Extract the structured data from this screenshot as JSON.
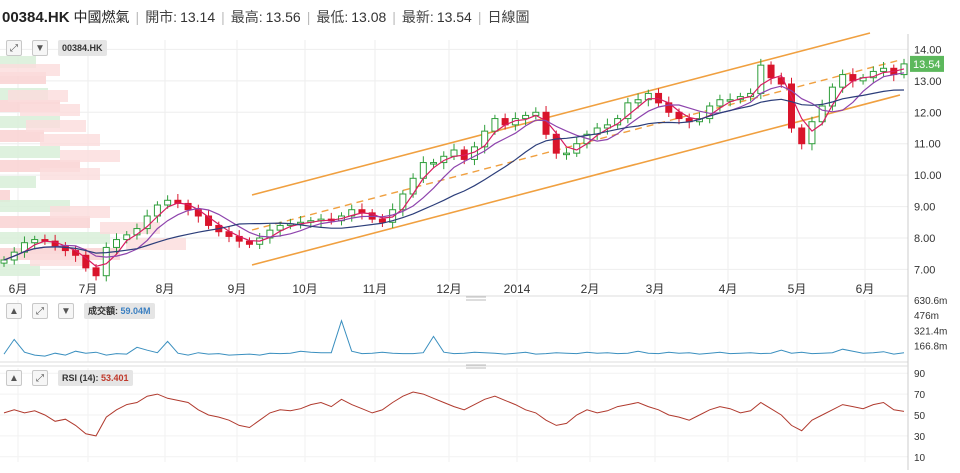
{
  "header": {
    "ticker": "00384.HK",
    "name": "中國燃氣",
    "open_label": "開市:",
    "open_value": "13.14",
    "high_label": "最高:",
    "high_value": "13.56",
    "low_label": "最低:",
    "low_value": "13.08",
    "last_label": "最新:",
    "last_value": "13.54",
    "period": "日線圖"
  },
  "colors": {
    "up": "#2e9e3a",
    "down": "#d9142b",
    "ma_short": "#d81b60",
    "ma_mid": "#8e44ad",
    "ma_long": "#2c3e7a",
    "channel": "#f0a040",
    "volume": "#3a8fbf",
    "rsi": "#b03a2e",
    "price_tag": "#5cb85c"
  },
  "icons": {
    "expand": "expand-icon",
    "collapse": "arrow-down-icon",
    "up": "arrow-up-icon"
  },
  "chart_data": [
    {
      "type": "candlestick",
      "label": "00384.HK",
      "x_tick_labels": [
        "6月",
        "7月",
        "8月",
        "9月",
        "10月",
        "11月",
        "12月",
        "2014",
        "2月",
        "3月",
        "4月",
        "5月",
        "6月"
      ],
      "y_tick_labels": [
        "14.00",
        "13.00",
        "12.00",
        "11.00",
        "10.00",
        "9.00",
        "8.00",
        "7.00"
      ],
      "ylim": [
        6.6,
        14.3
      ],
      "last_price": "13.54",
      "close_series": [
        7.3,
        7.55,
        7.85,
        7.95,
        7.9,
        7.75,
        7.6,
        7.45,
        7.05,
        6.8,
        7.7,
        7.95,
        8.1,
        8.3,
        8.7,
        9.05,
        9.2,
        9.1,
        8.9,
        8.7,
        8.4,
        8.2,
        8.05,
        7.9,
        7.8,
        8.0,
        8.25,
        8.4,
        8.45,
        8.5,
        8.55,
        8.6,
        8.55,
        8.7,
        8.9,
        8.8,
        8.6,
        8.5,
        8.9,
        9.4,
        9.9,
        10.4,
        10.4,
        10.6,
        10.8,
        10.5,
        10.9,
        11.4,
        11.8,
        11.6,
        11.8,
        11.9,
        12.0,
        11.3,
        10.7,
        10.7,
        11.0,
        11.3,
        11.5,
        11.6,
        11.8,
        12.3,
        12.4,
        12.6,
        12.3,
        12.0,
        11.8,
        11.7,
        11.8,
        12.2,
        12.4,
        12.4,
        12.5,
        12.6,
        13.5,
        13.1,
        12.9,
        11.5,
        11.0,
        11.7,
        12.2,
        12.8,
        13.2,
        13.0,
        13.1,
        13.3,
        13.4,
        13.2,
        13.54
      ],
      "volume_tick_labels": [
        "630.6m",
        "476m",
        "321.4m",
        "166.8m"
      ],
      "volume_ylim": [
        0,
        630.6
      ],
      "volume_label": "成交額:",
      "volume_value": "59.04M",
      "volume_series": [
        80,
        230,
        100,
        70,
        60,
        90,
        70,
        110,
        90,
        100,
        70,
        85,
        80,
        150,
        120,
        95,
        210,
        90,
        70,
        95,
        80,
        85,
        70,
        75,
        80,
        70,
        90,
        85,
        90,
        110,
        100,
        95,
        95,
        420,
        110,
        85,
        90,
        100,
        90,
        85,
        85,
        95,
        260,
        100,
        85,
        90,
        100,
        95,
        90,
        80,
        90,
        100,
        80,
        85,
        95,
        90,
        85,
        100,
        90,
        95,
        85,
        90,
        110,
        90,
        85,
        100,
        90,
        95,
        80,
        90,
        100,
        85,
        90,
        95,
        85,
        90,
        120,
        90,
        100,
        85,
        90,
        95,
        130,
        110,
        90,
        95,
        105,
        80,
        95
      ]
    },
    {
      "type": "line",
      "label": "RSI (14):",
      "value": "53.401",
      "y_tick_labels": [
        "90",
        "70",
        "50",
        "30",
        "10"
      ],
      "ylim": [
        5,
        95
      ],
      "series": [
        52,
        55,
        52,
        54,
        50,
        44,
        46,
        40,
        32,
        30,
        48,
        55,
        60,
        62,
        68,
        70,
        66,
        64,
        62,
        55,
        50,
        48,
        45,
        40,
        38,
        45,
        52,
        55,
        54,
        56,
        60,
        62,
        58,
        65,
        60,
        56,
        52,
        55,
        62,
        68,
        72,
        70,
        66,
        62,
        58,
        55,
        60,
        65,
        68,
        64,
        60,
        55,
        52,
        45,
        40,
        42,
        50,
        55,
        52,
        54,
        58,
        60,
        62,
        58,
        55,
        50,
        48,
        45,
        50,
        55,
        58,
        56,
        52,
        54,
        62,
        56,
        50,
        40,
        35,
        45,
        50,
        55,
        60,
        58,
        56,
        60,
        62,
        55,
        53.4
      ]
    }
  ]
}
